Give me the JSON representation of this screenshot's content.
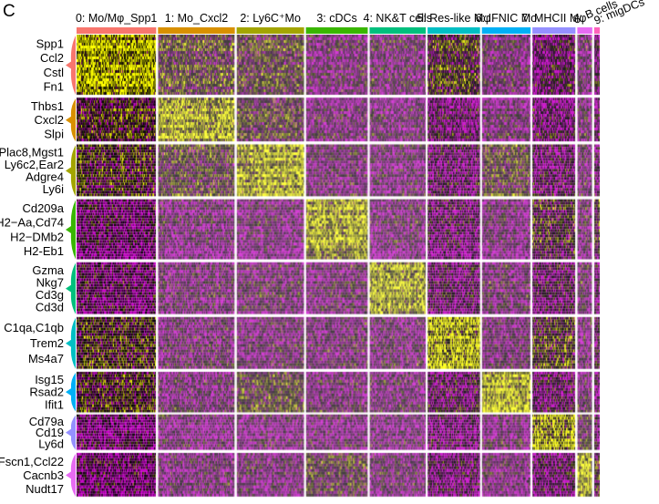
{
  "panel_letter": "C",
  "chart_data": {
    "type": "heatmap",
    "title": "",
    "xlabel": "",
    "ylabel": "",
    "color_scale": {
      "low": "#ff00ff",
      "mid": "#000000",
      "high": "#ffff00"
    },
    "clusters": [
      {
        "label": "0: Mo/Mφ_Spp1",
        "color": "#f8766d",
        "cells": 850
      },
      {
        "label": "1: Mo_Cxcl2",
        "color": "#d89000",
        "cells": 820
      },
      {
        "label": "2: Ly6C⁺Mo",
        "color": "#a3a500",
        "cells": 720
      },
      {
        "label": "3: cDCs",
        "color": "#39b600",
        "cells": 660
      },
      {
        "label": "4: NK&T cells",
        "color": "#00bf7d",
        "cells": 600
      },
      {
        "label": "5: Res-like Mφ",
        "color": "#00bfc4",
        "cells": 560
      },
      {
        "label": "6: IFNIC Mo",
        "color": "#00b0f6",
        "cells": 520
      },
      {
        "label": "7: MHCII Mφ",
        "color": "#9590ff",
        "cells": 460
      },
      {
        "label": "8: B cells",
        "color": "#e76bf3",
        "cells": 160
      },
      {
        "label": "9: migDCs",
        "color": "#ff62bc",
        "cells": 60
      }
    ],
    "gene_blocks": [
      {
        "cluster": 0,
        "genes": [
          "Spp1",
          "Ccl2",
          "Cstl",
          "Fn1"
        ]
      },
      {
        "cluster": 1,
        "genes": [
          "Thbs1",
          "Cxcl2",
          "Slpi"
        ]
      },
      {
        "cluster": 2,
        "genes": [
          "Plac8,Mgst1",
          "Ly6c2,Ear2",
          "Adgre4",
          "Ly6i"
        ]
      },
      {
        "cluster": 3,
        "genes": [
          "Cd209a",
          "H2−Aa,Cd74",
          "H2−DMb2",
          "H2-Eb1"
        ]
      },
      {
        "cluster": 4,
        "genes": [
          "Gzma",
          "Nkg7",
          "Cd3g",
          "Cd3d"
        ]
      },
      {
        "cluster": 5,
        "genes": [
          "C1qa,C1qb",
          "Trem2",
          "Ms4a7"
        ]
      },
      {
        "cluster": 6,
        "genes": [
          "Isg15",
          "Rsad2",
          "Ifit1"
        ]
      },
      {
        "cluster": 7,
        "genes": [
          "Cd79a",
          "Cd19",
          "Ly6d"
        ]
      },
      {
        "cluster": 8,
        "genes": [
          "Fscn1,Ccl22",
          "Cacnb3",
          "Nudt17"
        ]
      }
    ],
    "rows_per_block": [
      30,
      22,
      26,
      30,
      26,
      26,
      20,
      18,
      22
    ],
    "grid": false,
    "legend": "none"
  }
}
